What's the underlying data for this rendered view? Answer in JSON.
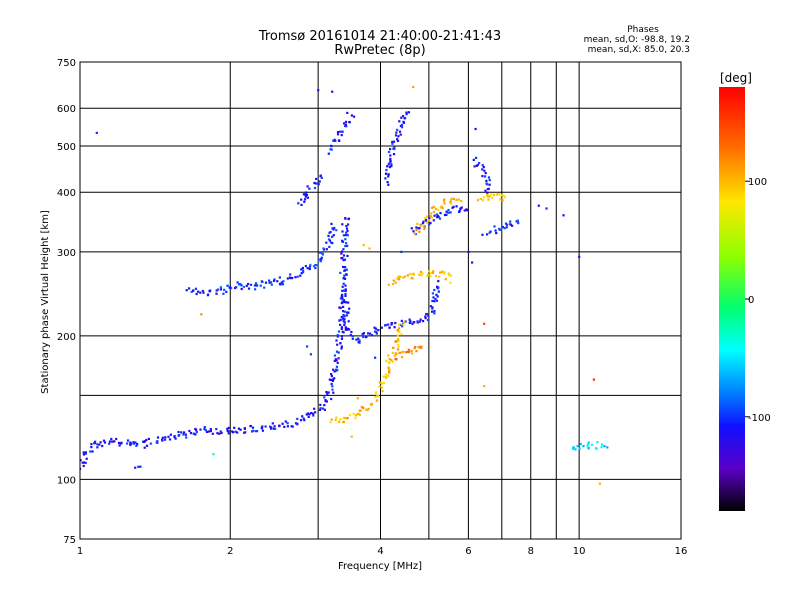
{
  "chart_data": {
    "type": "scatter",
    "title": "Tromsø 20161014 21:40:00-21:41:43",
    "subtitle": "RwPretec (8p)",
    "xlabel": "Frequency [MHz]",
    "ylabel": "Stationary phase Virtual Height [km]",
    "x_scale": "log",
    "y_scale": "log",
    "xlim": [
      1,
      16
    ],
    "ylim": [
      75,
      750
    ],
    "x_ticks": [
      1,
      2,
      4,
      6,
      8,
      10,
      16
    ],
    "x_tick_labels": [
      "1",
      "2",
      "4",
      "6",
      "8",
      "10",
      "16"
    ],
    "x_minor_grid": [
      3,
      5,
      7,
      9
    ],
    "y_ticks": [
      75,
      100,
      200,
      300,
      400,
      500,
      600,
      750
    ],
    "y_tick_labels": [
      "75",
      "100",
      "200",
      "300",
      "400",
      "500",
      "600",
      "750"
    ],
    "y_minor_grid": [
      150
    ],
    "grid": true,
    "phases_info": {
      "heading": "Phases",
      "line1": "mean, sd,O: -98.8, 19.2",
      "line2": "mean, sd,X: 85.0, 20.3"
    },
    "colorbar": {
      "unit_label": "[deg]",
      "range": [
        -180,
        180
      ],
      "tick_values": [
        100,
        0,
        -100
      ],
      "tick_labels": [
        "100",
        "0",
        "-100"
      ]
    },
    "traces": [
      {
        "phase": -110,
        "points": [
          [
            1.0,
            107
          ],
          [
            1.05,
            118
          ],
          [
            1.15,
            120
          ],
          [
            1.3,
            118
          ],
          [
            1.45,
            121
          ],
          [
            1.6,
            124
          ],
          [
            1.8,
            127
          ],
          [
            2.0,
            126
          ],
          [
            2.2,
            128
          ],
          [
            2.45,
            129
          ],
          [
            2.7,
            132
          ],
          [
            2.9,
            136
          ],
          [
            3.05,
            142
          ],
          [
            3.15,
            150
          ],
          [
            3.22,
            162
          ],
          [
            3.28,
            178
          ],
          [
            3.3,
            190
          ],
          [
            3.33,
            205
          ],
          [
            3.35,
            225
          ],
          [
            3.37,
            260
          ],
          [
            3.38,
            300
          ],
          [
            3.4,
            340
          ],
          [
            3.42,
            360
          ]
        ]
      },
      {
        "phase": -110,
        "points": [
          [
            1.3,
            106
          ],
          [
            1.32,
            108
          ]
        ]
      },
      {
        "phase": -100,
        "points": [
          [
            1.65,
            250
          ],
          [
            1.75,
            246
          ],
          [
            1.9,
            248
          ],
          [
            2.05,
            256
          ],
          [
            2.2,
            253
          ],
          [
            2.4,
            258
          ],
          [
            2.6,
            262
          ],
          [
            2.8,
            272
          ],
          [
            3.0,
            285
          ],
          [
            3.1,
            300
          ],
          [
            3.18,
            320
          ],
          [
            3.25,
            345
          ]
        ]
      },
      {
        "phase": -110,
        "points": [
          [
            3.4,
            245
          ],
          [
            3.42,
            215
          ],
          [
            3.48,
            200
          ],
          [
            3.6,
            196
          ],
          [
            3.75,
            200
          ],
          [
            3.95,
            206
          ],
          [
            4.2,
            210
          ],
          [
            4.5,
            213
          ],
          [
            4.8,
            216
          ],
          [
            5.0,
            222
          ],
          [
            5.15,
            238
          ],
          [
            5.2,
            260
          ]
        ]
      },
      {
        "phase": -110,
        "points": [
          [
            4.1,
            420
          ],
          [
            4.2,
            470
          ],
          [
            4.3,
            520
          ],
          [
            4.45,
            570
          ],
          [
            4.55,
            600
          ]
        ]
      },
      {
        "phase": -110,
        "points": [
          [
            3.2,
            490
          ],
          [
            3.3,
            530
          ],
          [
            3.4,
            560
          ],
          [
            3.5,
            585
          ]
        ]
      },
      {
        "phase": -110,
        "points": [
          [
            2.75,
            380
          ],
          [
            2.85,
            400
          ],
          [
            2.95,
            415
          ],
          [
            3.05,
            435
          ]
        ]
      },
      {
        "phase": -110,
        "points": [
          [
            4.6,
            330
          ],
          [
            4.9,
            345
          ],
          [
            5.3,
            360
          ],
          [
            5.7,
            370
          ],
          [
            6.0,
            362
          ]
        ]
      },
      {
        "phase": 100,
        "points": [
          [
            3.2,
            133
          ],
          [
            3.4,
            134
          ],
          [
            3.6,
            137
          ],
          [
            3.8,
            143
          ],
          [
            3.95,
            150
          ],
          [
            4.05,
            160
          ],
          [
            4.15,
            172
          ],
          [
            4.25,
            185
          ],
          [
            4.35,
            200
          ],
          [
            4.4,
            215
          ]
        ]
      },
      {
        "phase": 100,
        "points": [
          [
            4.7,
            330
          ],
          [
            4.95,
            350
          ],
          [
            5.2,
            370
          ],
          [
            5.5,
            385
          ],
          [
            5.8,
            380
          ]
        ]
      },
      {
        "phase": 95,
        "points": [
          [
            4.2,
            260
          ],
          [
            4.5,
            265
          ],
          [
            4.8,
            268
          ],
          [
            5.1,
            270
          ],
          [
            5.4,
            268
          ],
          [
            5.6,
            262
          ]
        ]
      },
      {
        "phase": 120,
        "points": [
          [
            4.3,
            180
          ],
          [
            4.5,
            184
          ],
          [
            4.7,
            188
          ],
          [
            4.9,
            192
          ]
        ]
      },
      {
        "phase": -105,
        "points": [
          [
            6.5,
            330
          ],
          [
            6.8,
            334
          ],
          [
            7.1,
            340
          ],
          [
            7.4,
            345
          ],
          [
            7.6,
            350
          ]
        ]
      },
      {
        "phase": 90,
        "points": [
          [
            6.3,
            385
          ],
          [
            6.6,
            390
          ],
          [
            6.9,
            392
          ],
          [
            7.2,
            388
          ]
        ]
      },
      {
        "phase": -50,
        "points": [
          [
            9.7,
            118
          ],
          [
            10.2,
            117
          ],
          [
            10.8,
            118
          ],
          [
            11.3,
            117
          ]
        ]
      },
      {
        "phase": -110,
        "points": [
          [
            6.2,
            470
          ],
          [
            6.5,
            430
          ],
          [
            6.6,
            400
          ]
        ]
      }
    ],
    "scattered_points": [
      {
        "x": 1.08,
        "y": 533,
        "phase": -100
      },
      {
        "x": 3.0,
        "y": 655,
        "phase": -110
      },
      {
        "x": 3.2,
        "y": 650,
        "phase": -110
      },
      {
        "x": 4.65,
        "y": 665,
        "phase": 110
      },
      {
        "x": 6.2,
        "y": 543,
        "phase": -110
      },
      {
        "x": 10.0,
        "y": 293,
        "phase": -110
      },
      {
        "x": 10.7,
        "y": 162,
        "phase": 160
      },
      {
        "x": 6.45,
        "y": 157,
        "phase": 100
      },
      {
        "x": 6.45,
        "y": 212,
        "phase": 150
      },
      {
        "x": 1.75,
        "y": 222,
        "phase": 120
      },
      {
        "x": 1.85,
        "y": 113,
        "phase": -20
      },
      {
        "x": 2.85,
        "y": 190,
        "phase": -95
      },
      {
        "x": 2.9,
        "y": 183,
        "phase": -95
      },
      {
        "x": 8.3,
        "y": 375,
        "phase": -110
      },
      {
        "x": 8.6,
        "y": 370,
        "phase": -100
      },
      {
        "x": 9.3,
        "y": 358,
        "phase": -110
      },
      {
        "x": 11.0,
        "y": 98,
        "phase": 100
      },
      {
        "x": 3.6,
        "y": 148,
        "phase": 105
      },
      {
        "x": 3.5,
        "y": 123,
        "phase": 100
      },
      {
        "x": 3.9,
        "y": 180,
        "phase": -100
      },
      {
        "x": 3.7,
        "y": 310,
        "phase": 100
      },
      {
        "x": 3.8,
        "y": 305,
        "phase": 100
      },
      {
        "x": 4.4,
        "y": 300,
        "phase": -100
      },
      {
        "x": 6.0,
        "y": 300,
        "phase": -110
      },
      {
        "x": 6.1,
        "y": 285,
        "phase": -110
      }
    ]
  }
}
